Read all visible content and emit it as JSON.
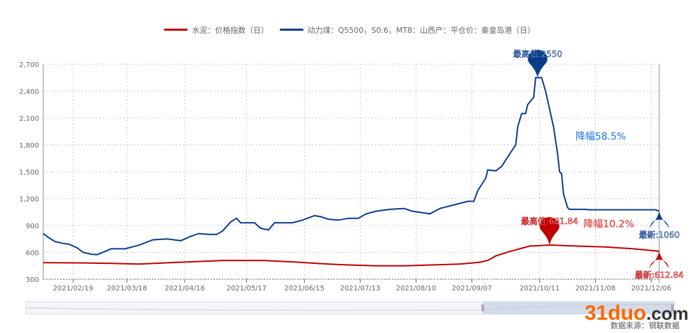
{
  "chart_data": {
    "type": "line",
    "start_date": "2021-02-04",
    "x_unit": "days since start_date",
    "legend_position": "top-center",
    "grid": true,
    "ylim": [
      300,
      2700
    ],
    "yticks": [
      "300",
      "600",
      "900",
      "1,200",
      "1,500",
      "1,800",
      "2,100",
      "2,400",
      "2,700"
    ],
    "ytick_values": [
      300,
      600,
      900,
      1200,
      1500,
      1800,
      2100,
      2400,
      2700
    ],
    "xticks": [
      "2021/02/19",
      "2021/03/18",
      "2021/04/16",
      "2021/05/17",
      "2021/06/15",
      "2021/07/13",
      "2021/08/10",
      "2021/09/07",
      "2021/10/11",
      "2021/11/08",
      "2021/12/06"
    ],
    "xtick_days": [
      15,
      42,
      71,
      102,
      131,
      159,
      187,
      215,
      249,
      277,
      305
    ],
    "series": [
      {
        "name": "水泥：价格指数（日）",
        "color": "#c00000",
        "points": [
          [
            0,
            485
          ],
          [
            20,
            482
          ],
          [
            34,
            478
          ],
          [
            48,
            470
          ],
          [
            69,
            490
          ],
          [
            90,
            510
          ],
          [
            111,
            510
          ],
          [
            128,
            490
          ],
          [
            143,
            470
          ],
          [
            153,
            460
          ],
          [
            167,
            450
          ],
          [
            181,
            450
          ],
          [
            195,
            460
          ],
          [
            209,
            470
          ],
          [
            219,
            490
          ],
          [
            223,
            510
          ],
          [
            227,
            560
          ],
          [
            234,
            610
          ],
          [
            239,
            640
          ],
          [
            244,
            670
          ],
          [
            254,
            681.84
          ],
          [
            268,
            670
          ],
          [
            282,
            660
          ],
          [
            296,
            640
          ],
          [
            309,
            612.84
          ]
        ]
      },
      {
        "name": "动力煤：Q5500，S0.6，MT8：山西产：平仓价：秦皇岛港（日）",
        "color": "#0a3d8a",
        "points": [
          [
            0,
            810
          ],
          [
            3,
            760
          ],
          [
            6,
            720
          ],
          [
            10,
            700
          ],
          [
            13,
            690
          ],
          [
            17,
            650
          ],
          [
            20,
            600
          ],
          [
            24,
            580
          ],
          [
            27,
            575
          ],
          [
            31,
            610
          ],
          [
            34,
            640
          ],
          [
            41,
            640
          ],
          [
            48,
            680
          ],
          [
            55,
            740
          ],
          [
            62,
            750
          ],
          [
            69,
            730
          ],
          [
            74,
            780
          ],
          [
            78,
            810
          ],
          [
            83,
            800
          ],
          [
            87,
            800
          ],
          [
            90,
            840
          ],
          [
            94,
            940
          ],
          [
            97,
            980
          ],
          [
            99,
            930
          ],
          [
            106,
            930
          ],
          [
            109,
            870
          ],
          [
            113,
            850
          ],
          [
            116,
            930
          ],
          [
            125,
            930
          ],
          [
            130,
            960
          ],
          [
            136,
            1010
          ],
          [
            139,
            1000
          ],
          [
            143,
            970
          ],
          [
            148,
            960
          ],
          [
            153,
            980
          ],
          [
            158,
            980
          ],
          [
            162,
            1030
          ],
          [
            167,
            1060
          ],
          [
            174,
            1080
          ],
          [
            181,
            1090
          ],
          [
            185,
            1060
          ],
          [
            188,
            1050
          ],
          [
            194,
            1030
          ],
          [
            199,
            1090
          ],
          [
            206,
            1130
          ],
          [
            213,
            1170
          ],
          [
            216,
            1170
          ],
          [
            218,
            1290
          ],
          [
            222,
            1430
          ],
          [
            223,
            1520
          ],
          [
            227,
            1510
          ],
          [
            230,
            1560
          ],
          [
            234,
            1700
          ],
          [
            237,
            1800
          ],
          [
            238,
            2000
          ],
          [
            240,
            2150
          ],
          [
            242,
            2150
          ],
          [
            243,
            2250
          ],
          [
            246,
            2330
          ],
          [
            247,
            2550
          ],
          [
            250,
            2550
          ],
          [
            252,
            2400
          ],
          [
            254,
            2200
          ],
          [
            256,
            2000
          ],
          [
            258,
            1700
          ],
          [
            259,
            1500
          ],
          [
            260,
            1480
          ],
          [
            261,
            1250
          ],
          [
            263,
            1100
          ],
          [
            264,
            1080
          ],
          [
            272,
            1080
          ],
          [
            274,
            1075
          ],
          [
            283,
            1075
          ],
          [
            307,
            1075
          ],
          [
            309,
            1060
          ]
        ]
      }
    ],
    "annotations": {
      "coal_max": {
        "label": "最高值:2550",
        "day": 248,
        "value": 2550
      },
      "coal_latest": {
        "label": "最新:1060",
        "day": 309,
        "value": 1060
      },
      "coal_drop": {
        "label": "降幅58.5%",
        "day": 267,
        "value": 1860
      },
      "cement_max": {
        "label": "最高值:681.84",
        "day": 254,
        "value": 681.84
      },
      "cement_latest": {
        "label": "最新:612.84",
        "day": 309,
        "value": 612.84
      },
      "cement_drop": {
        "label": "降幅10.2%",
        "day": 271,
        "value": 880
      }
    }
  },
  "watermark": {
    "main": "31duo",
    "suffix": ".com",
    "source": "数据来源：钢联数据"
  }
}
